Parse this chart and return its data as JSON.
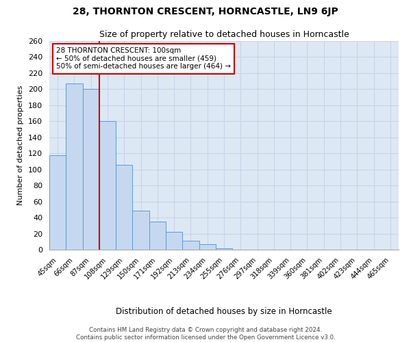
{
  "title": "28, THORNTON CRESCENT, HORNCASTLE, LN9 6JP",
  "subtitle": "Size of property relative to detached houses in Horncastle",
  "xlabel": "Distribution of detached houses by size in Horncastle",
  "ylabel": "Number of detached properties",
  "categories": [
    "45sqm",
    "66sqm",
    "87sqm",
    "108sqm",
    "129sqm",
    "150sqm",
    "171sqm",
    "192sqm",
    "213sqm",
    "234sqm",
    "255sqm",
    "276sqm",
    "297sqm",
    "318sqm",
    "339sqm",
    "360sqm",
    "381sqm",
    "402sqm",
    "423sqm",
    "444sqm",
    "465sqm"
  ],
  "values": [
    118,
    207,
    200,
    160,
    106,
    49,
    35,
    22,
    11,
    7,
    2,
    0,
    0,
    0,
    0,
    0,
    0,
    0,
    0,
    0,
    0
  ],
  "bar_color": "#c5d8f0",
  "bar_edge_color": "#5b9bd5",
  "red_line_x": 2.5,
  "annotation_text": "28 THORNTON CRESCENT: 100sqm\n← 50% of detached houses are smaller (459)\n50% of semi-detached houses are larger (464) →",
  "annotation_box_color": "#ffffff",
  "annotation_box_edge_color": "#cc0000",
  "red_line_color": "#cc0000",
  "ylim": [
    0,
    260
  ],
  "yticks": [
    0,
    20,
    40,
    60,
    80,
    100,
    120,
    140,
    160,
    180,
    200,
    220,
    240,
    260
  ],
  "grid_color": "#c8d4e8",
  "background_color": "#dde8f5",
  "title_fontsize": 10,
  "subtitle_fontsize": 9,
  "footnote": "Contains HM Land Registry data © Crown copyright and database right 2024.\nContains public sector information licensed under the Open Government Licence v3.0."
}
